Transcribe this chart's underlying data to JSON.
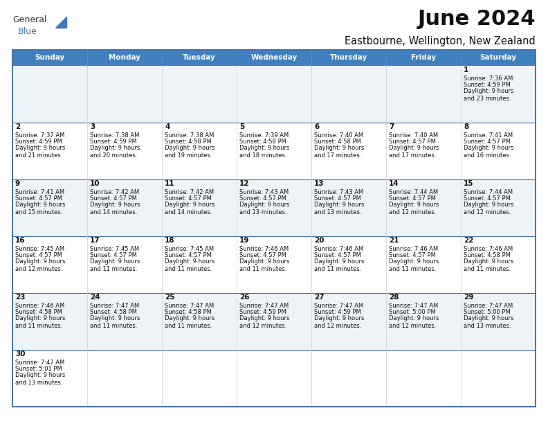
{
  "title": "June 2024",
  "subtitle": "Eastbourne, Wellington, New Zealand",
  "header_bg": "#4080bf",
  "header_text_color": "#ffffff",
  "border_color": "#4472a8",
  "days_of_week": [
    "Sunday",
    "Monday",
    "Tuesday",
    "Wednesday",
    "Thursday",
    "Friday",
    "Saturday"
  ],
  "calendar": [
    [
      null,
      null,
      null,
      null,
      null,
      null,
      {
        "day": 1,
        "sunrise": "7:36 AM",
        "sunset": "4:59 PM",
        "daylight": "9 hours\nand 23 minutes."
      }
    ],
    [
      {
        "day": 2,
        "sunrise": "7:37 AM",
        "sunset": "4:59 PM",
        "daylight": "9 hours\nand 21 minutes."
      },
      {
        "day": 3,
        "sunrise": "7:38 AM",
        "sunset": "4:59 PM",
        "daylight": "9 hours\nand 20 minutes."
      },
      {
        "day": 4,
        "sunrise": "7:38 AM",
        "sunset": "4:58 PM",
        "daylight": "9 hours\nand 19 minutes."
      },
      {
        "day": 5,
        "sunrise": "7:39 AM",
        "sunset": "4:58 PM",
        "daylight": "9 hours\nand 18 minutes."
      },
      {
        "day": 6,
        "sunrise": "7:40 AM",
        "sunset": "4:58 PM",
        "daylight": "9 hours\nand 17 minutes."
      },
      {
        "day": 7,
        "sunrise": "7:40 AM",
        "sunset": "4:57 PM",
        "daylight": "9 hours\nand 17 minutes."
      },
      {
        "day": 8,
        "sunrise": "7:41 AM",
        "sunset": "4:57 PM",
        "daylight": "9 hours\nand 16 minutes."
      }
    ],
    [
      {
        "day": 9,
        "sunrise": "7:41 AM",
        "sunset": "4:57 PM",
        "daylight": "9 hours\nand 15 minutes."
      },
      {
        "day": 10,
        "sunrise": "7:42 AM",
        "sunset": "4:57 PM",
        "daylight": "9 hours\nand 14 minutes."
      },
      {
        "day": 11,
        "sunrise": "7:42 AM",
        "sunset": "4:57 PM",
        "daylight": "9 hours\nand 14 minutes."
      },
      {
        "day": 12,
        "sunrise": "7:43 AM",
        "sunset": "4:57 PM",
        "daylight": "9 hours\nand 13 minutes."
      },
      {
        "day": 13,
        "sunrise": "7:43 AM",
        "sunset": "4:57 PM",
        "daylight": "9 hours\nand 13 minutes."
      },
      {
        "day": 14,
        "sunrise": "7:44 AM",
        "sunset": "4:57 PM",
        "daylight": "9 hours\nand 12 minutes."
      },
      {
        "day": 15,
        "sunrise": "7:44 AM",
        "sunset": "4:57 PM",
        "daylight": "9 hours\nand 12 minutes."
      }
    ],
    [
      {
        "day": 16,
        "sunrise": "7:45 AM",
        "sunset": "4:57 PM",
        "daylight": "9 hours\nand 12 minutes."
      },
      {
        "day": 17,
        "sunrise": "7:45 AM",
        "sunset": "4:57 PM",
        "daylight": "9 hours\nand 11 minutes."
      },
      {
        "day": 18,
        "sunrise": "7:45 AM",
        "sunset": "4:57 PM",
        "daylight": "9 hours\nand 11 minutes."
      },
      {
        "day": 19,
        "sunrise": "7:46 AM",
        "sunset": "4:57 PM",
        "daylight": "9 hours\nand 11 minutes."
      },
      {
        "day": 20,
        "sunrise": "7:46 AM",
        "sunset": "4:57 PM",
        "daylight": "9 hours\nand 11 minutes."
      },
      {
        "day": 21,
        "sunrise": "7:46 AM",
        "sunset": "4:57 PM",
        "daylight": "9 hours\nand 11 minutes."
      },
      {
        "day": 22,
        "sunrise": "7:46 AM",
        "sunset": "4:58 PM",
        "daylight": "9 hours\nand 11 minutes."
      }
    ],
    [
      {
        "day": 23,
        "sunrise": "7:46 AM",
        "sunset": "4:58 PM",
        "daylight": "9 hours\nand 11 minutes."
      },
      {
        "day": 24,
        "sunrise": "7:47 AM",
        "sunset": "4:58 PM",
        "daylight": "9 hours\nand 11 minutes."
      },
      {
        "day": 25,
        "sunrise": "7:47 AM",
        "sunset": "4:58 PM",
        "daylight": "9 hours\nand 11 minutes."
      },
      {
        "day": 26,
        "sunrise": "7:47 AM",
        "sunset": "4:59 PM",
        "daylight": "9 hours\nand 12 minutes."
      },
      {
        "day": 27,
        "sunrise": "7:47 AM",
        "sunset": "4:59 PM",
        "daylight": "9 hours\nand 12 minutes."
      },
      {
        "day": 28,
        "sunrise": "7:47 AM",
        "sunset": "5:00 PM",
        "daylight": "9 hours\nand 12 minutes."
      },
      {
        "day": 29,
        "sunrise": "7:47 AM",
        "sunset": "5:00 PM",
        "daylight": "9 hours\nand 13 minutes."
      }
    ],
    [
      {
        "day": 30,
        "sunrise": "7:47 AM",
        "sunset": "5:01 PM",
        "daylight": "9 hours\nand 13 minutes."
      },
      null,
      null,
      null,
      null,
      null,
      null
    ]
  ],
  "logo_color_general": "#333333",
  "logo_color_blue": "#3a7abf",
  "fig_width": 7.92,
  "fig_height": 6.12,
  "dpi": 100
}
